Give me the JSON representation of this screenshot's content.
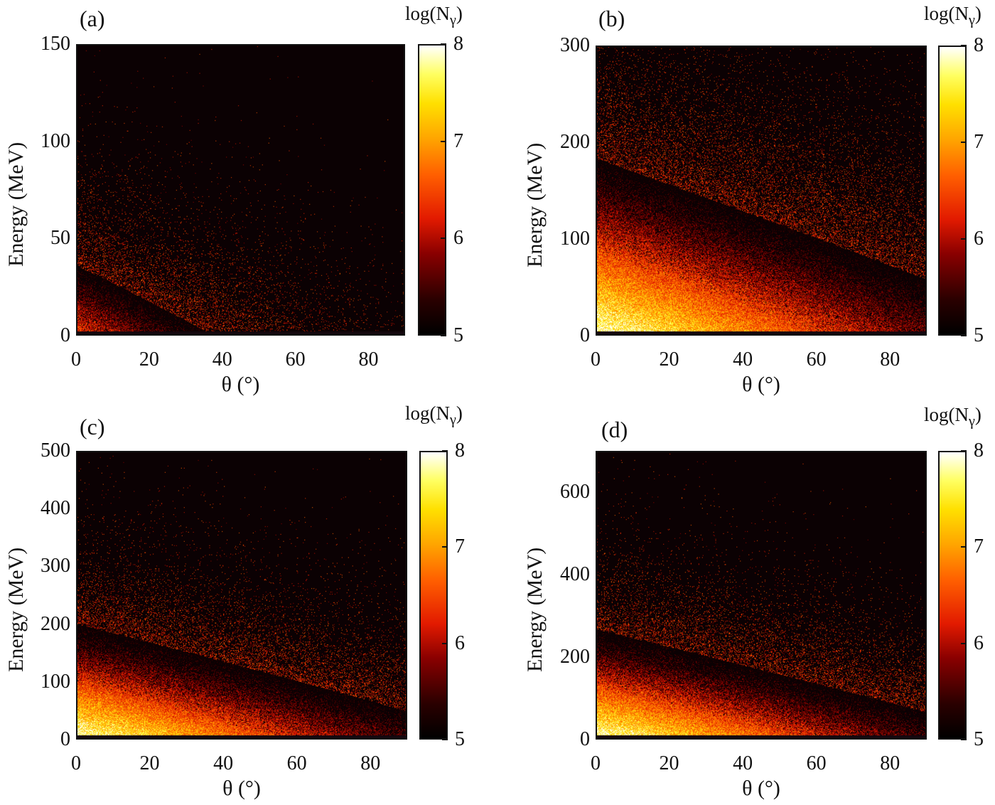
{
  "chart_data": [
    {
      "type": "heatmap",
      "panel_label": "(a)",
      "xlabel": "θ (°)",
      "ylabel": "Energy (MeV)",
      "xlim": [
        0,
        90
      ],
      "ylim": [
        0,
        150
      ],
      "xticks": [
        0,
        20,
        40,
        60,
        80
      ],
      "yticks": [
        0,
        50,
        100,
        150
      ],
      "colorbar": {
        "title": "log(N_γ)",
        "title_base": "log(N",
        "title_sub": "γ",
        "title_close": ")",
        "range": [
          5,
          8
        ],
        "ticks": [
          5,
          6,
          7,
          8
        ]
      },
      "decay_energy_scale_MeV": 20,
      "decay_angle_scale_deg": 12,
      "bright_core_intensity": 6.6
    },
    {
      "type": "heatmap",
      "panel_label": "(b)",
      "xlabel": "θ (°)",
      "ylabel": "Energy (MeV)",
      "xlim": [
        0,
        90
      ],
      "ylim": [
        0,
        300
      ],
      "xticks": [
        0,
        20,
        40,
        60,
        80
      ],
      "yticks": [
        0,
        100,
        200,
        300
      ],
      "colorbar": {
        "title": "log(N_γ)",
        "title_base": "log(N",
        "title_sub": "γ",
        "title_close": ")",
        "range": [
          5,
          8
        ],
        "ticks": [
          5,
          6,
          7,
          8
        ]
      },
      "decay_energy_scale_MeV": 55,
      "decay_angle_scale_deg": 22,
      "bright_core_intensity": 8
    },
    {
      "type": "heatmap",
      "panel_label": "(c)",
      "xlabel": "θ (°)",
      "ylabel": "Energy (MeV)",
      "xlim": [
        0,
        90
      ],
      "ylim": [
        0,
        500
      ],
      "xticks": [
        0,
        20,
        40,
        60,
        80
      ],
      "yticks": [
        0,
        100,
        200,
        300,
        400,
        500
      ],
      "colorbar": {
        "title": "log(N_γ)",
        "title_base": "log(N",
        "title_sub": "γ",
        "title_close": ")",
        "range": [
          5,
          8
        ],
        "ticks": [
          5,
          6,
          7,
          8
        ]
      },
      "decay_energy_scale_MeV": 60,
      "decay_angle_scale_deg": 20,
      "bright_core_intensity": 8
    },
    {
      "type": "heatmap",
      "panel_label": "(d)",
      "xlabel": "θ (°)",
      "ylabel": "Energy (MeV)",
      "xlim": [
        0,
        90
      ],
      "ylim": [
        0,
        700
      ],
      "xticks": [
        0,
        20,
        40,
        60,
        80
      ],
      "yticks": [
        0,
        200,
        400,
        600
      ],
      "colorbar": {
        "title": "log(N_γ)",
        "title_base": "log(N",
        "title_sub": "γ",
        "title_close": ")",
        "range": [
          5,
          8
        ],
        "ticks": [
          5,
          6,
          7,
          8
        ]
      },
      "decay_energy_scale_MeV": 80,
      "decay_angle_scale_deg": 20,
      "bright_core_intensity": 8
    }
  ]
}
